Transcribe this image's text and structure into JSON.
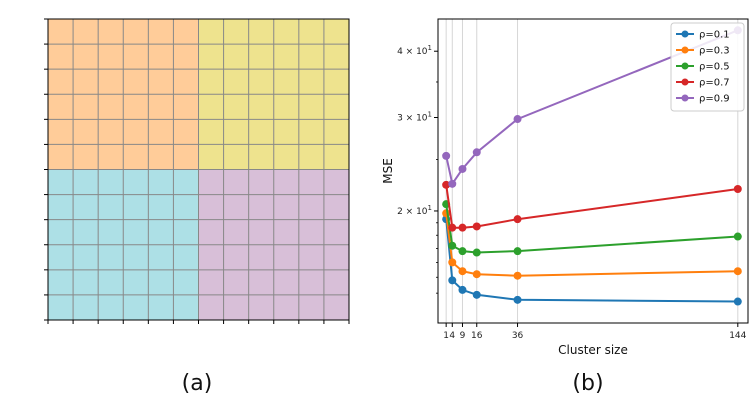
{
  "panel_a": {
    "caption": "(a)",
    "grid": {
      "rows": 12,
      "cols": 12
    },
    "quadrants": [
      {
        "name": "top-left",
        "color": "#ffcc99"
      },
      {
        "name": "top-right",
        "color": "#eee38e"
      },
      {
        "name": "bottom-left",
        "color": "#ade0e6"
      },
      {
        "name": "bottom-right",
        "color": "#d8bfd8"
      }
    ],
    "grid_line_color": "#888888"
  },
  "panel_b": {
    "caption": "(b)"
  },
  "chart_data": {
    "type": "line",
    "title": "",
    "xlabel": "Cluster size",
    "ylabel": "MSE",
    "xscale": "linear",
    "yscale": "log",
    "x": [
      1,
      4,
      9,
      16,
      36,
      144
    ],
    "xticks": [
      "1",
      "4",
      "9",
      "16",
      "36",
      "144"
    ],
    "yticks": [
      {
        "value": 20,
        "base": "2 × 10",
        "exp": "1"
      },
      {
        "value": 30,
        "base": "3 × 10",
        "exp": "1"
      },
      {
        "value": 40,
        "base": "4 × 10",
        "exp": "1"
      }
    ],
    "xlim": [
      -3,
      149
    ],
    "ylim": [
      12.3,
      46
    ],
    "grid": "vertical",
    "legend_position": "upper right",
    "series": [
      {
        "name": "ρ=0.1",
        "color": "#1f77b4",
        "values": [
          19.3,
          14.8,
          14.2,
          13.9,
          13.6,
          13.5
        ]
      },
      {
        "name": "ρ=0.3",
        "color": "#ff7f0e",
        "values": [
          19.8,
          16.0,
          15.4,
          15.2,
          15.1,
          15.4
        ]
      },
      {
        "name": "ρ=0.5",
        "color": "#2ca02c",
        "values": [
          20.6,
          17.2,
          16.8,
          16.7,
          16.8,
          17.9
        ]
      },
      {
        "name": "ρ=0.7",
        "color": "#d62728",
        "values": [
          22.4,
          18.6,
          18.6,
          18.7,
          19.3,
          22.0
        ]
      },
      {
        "name": "ρ=0.9",
        "color": "#9467bd",
        "values": [
          25.4,
          22.5,
          24.0,
          25.8,
          29.8,
          43.8
        ]
      }
    ]
  }
}
